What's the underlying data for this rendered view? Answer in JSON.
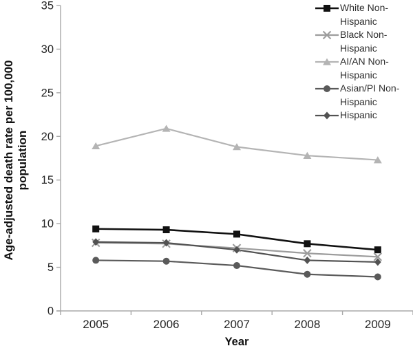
{
  "figure": {
    "ylabel": "Age-adjusted death rate per 100,000 population",
    "xlabel": "Year"
  },
  "colors": {
    "axis": "#a8a8a8",
    "tick_label": "#262626"
  },
  "chart_data": {
    "type": "line",
    "title": "",
    "xlabel": "Year",
    "ylabel": "Age-adjusted death rate per 100,000 population",
    "x": [
      "2005",
      "2006",
      "2007",
      "2008",
      "2009"
    ],
    "ylim": [
      0,
      35
    ],
    "yticks": [
      0,
      5,
      10,
      15,
      20,
      25,
      30,
      35
    ],
    "grid": false,
    "legend_position": "top-right",
    "series": [
      {
        "name": "White Non-Hispanic",
        "marker": "square",
        "color": "#111111",
        "line_width": 2.6,
        "values": [
          9.4,
          9.3,
          8.8,
          7.7,
          7.0
        ]
      },
      {
        "name": "Black Non-Hispanic",
        "marker": "x",
        "color": "#9c9c9c",
        "line_width": 2.2,
        "values": [
          7.8,
          7.7,
          7.2,
          6.6,
          6.2
        ]
      },
      {
        "name": "AI/AN Non-Hispanic",
        "marker": "triangle",
        "color": "#b4b4b4",
        "line_width": 2.2,
        "values": [
          18.9,
          20.9,
          18.8,
          17.8,
          17.3
        ]
      },
      {
        "name": "Asian/PI Non-Hispanic",
        "marker": "circle",
        "color": "#5a5a5a",
        "line_width": 2.2,
        "values": [
          5.8,
          5.7,
          5.2,
          4.2,
          3.9
        ]
      },
      {
        "name": "Hispanic",
        "marker": "diamond",
        "color": "#525252",
        "line_width": 2.2,
        "values": [
          7.9,
          7.8,
          7.0,
          5.8,
          5.6
        ]
      }
    ]
  }
}
